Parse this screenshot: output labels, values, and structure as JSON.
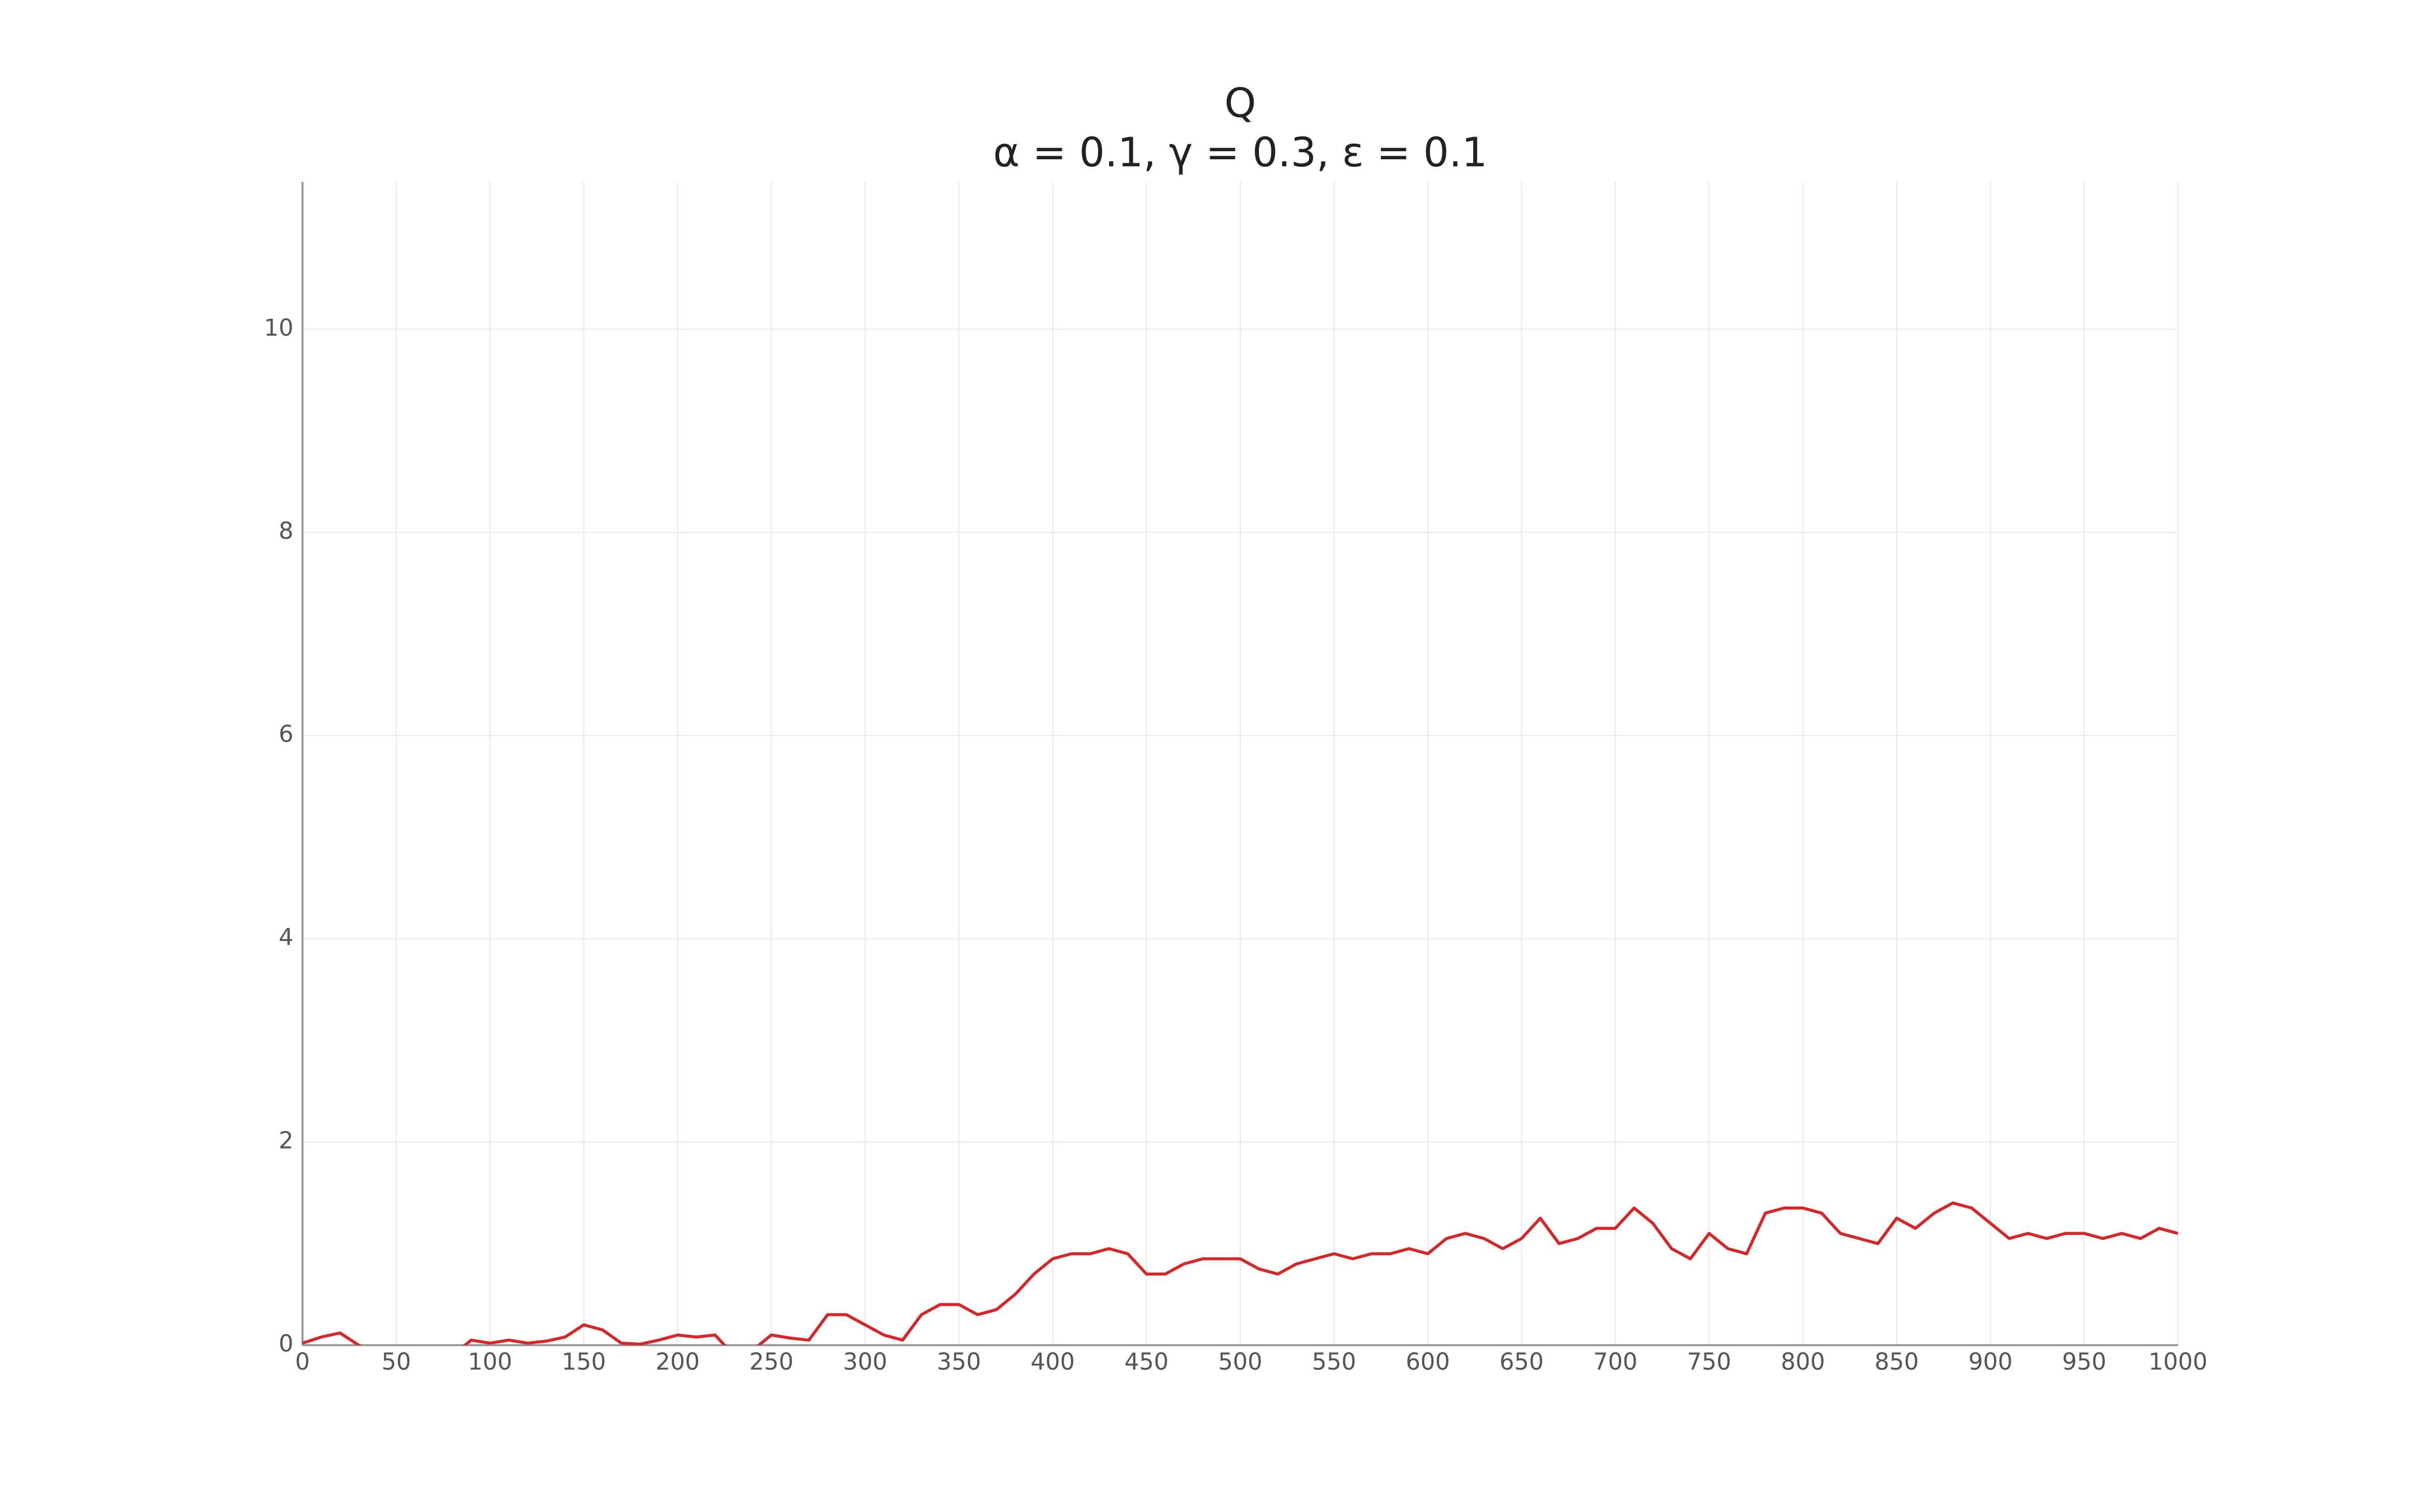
{
  "chart_data": {
    "type": "line",
    "title": "Q",
    "subtitle": "α = 0.1, γ = 0.3, ε = 0.1",
    "x": [
      0,
      10,
      20,
      30,
      40,
      50,
      60,
      70,
      80,
      90,
      100,
      110,
      120,
      130,
      140,
      150,
      160,
      170,
      180,
      190,
      200,
      210,
      220,
      230,
      240,
      250,
      260,
      270,
      280,
      290,
      300,
      310,
      320,
      330,
      340,
      350,
      360,
      370,
      380,
      390,
      400,
      410,
      420,
      430,
      440,
      450,
      460,
      470,
      480,
      490,
      500,
      510,
      520,
      530,
      540,
      550,
      560,
      570,
      580,
      590,
      600,
      610,
      620,
      630,
      640,
      650,
      660,
      670,
      680,
      690,
      700,
      710,
      720,
      730,
      740,
      750,
      760,
      770,
      780,
      790,
      800,
      810,
      820,
      830,
      840,
      850,
      860,
      870,
      880,
      890,
      900,
      910,
      920,
      930,
      940,
      950,
      960,
      970,
      980,
      990,
      1000
    ],
    "series": [
      {
        "color": "#d62728",
        "values": [
          0.02,
          0.08,
          0.12,
          0.0,
          -0.1,
          -0.1,
          -0.1,
          -0.1,
          -0.1,
          0.05,
          0.02,
          0.05,
          0.02,
          0.04,
          0.08,
          0.2,
          0.15,
          0.02,
          0.01,
          0.05,
          0.1,
          0.08,
          0.1,
          -0.1,
          -0.05,
          0.1,
          0.07,
          0.05,
          0.3,
          0.3,
          0.2,
          0.1,
          0.05,
          0.3,
          0.4,
          0.4,
          0.3,
          0.35,
          0.5,
          0.7,
          0.85,
          0.9,
          0.9,
          0.95,
          0.9,
          0.7,
          0.7,
          0.8,
          0.85,
          0.85,
          0.85,
          0.75,
          0.7,
          0.8,
          0.85,
          0.9,
          0.85,
          0.9,
          0.9,
          0.95,
          0.9,
          1.05,
          1.1,
          1.05,
          0.95,
          1.05,
          1.25,
          1.0,
          1.05,
          1.15,
          1.15,
          1.35,
          1.2,
          0.95,
          0.85,
          1.1,
          0.95,
          0.9,
          1.3,
          1.35,
          1.35,
          1.3,
          1.1,
          1.05,
          1.0,
          1.25,
          1.15,
          1.3,
          1.4,
          1.35,
          1.2,
          1.05,
          1.1,
          1.05,
          1.1,
          1.1,
          1.05,
          1.1,
          1.05,
          1.15,
          1.1
        ]
      }
    ],
    "xlim": [
      0,
      1000
    ],
    "xticks": [
      0,
      50,
      100,
      150,
      200,
      250,
      300,
      350,
      400,
      450,
      500,
      550,
      600,
      650,
      700,
      750,
      800,
      850,
      900,
      950,
      1000
    ],
    "ylim": [
      0,
      11.45
    ],
    "yticks": [
      0,
      2,
      4,
      6,
      8,
      10
    ],
    "grid": true
  }
}
